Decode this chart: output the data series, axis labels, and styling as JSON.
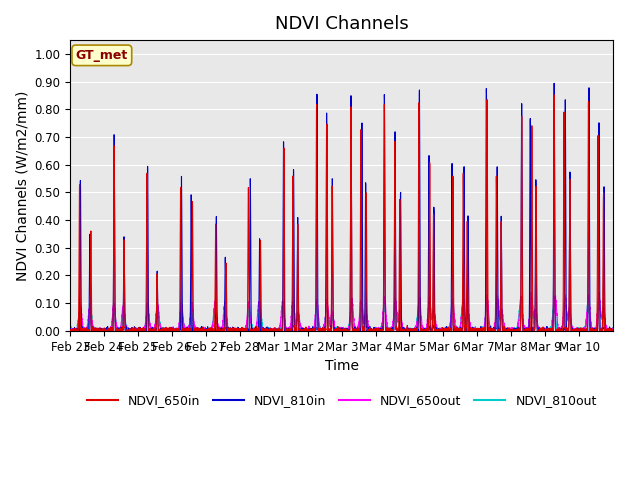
{
  "title": "NDVI Channels",
  "ylabel": "NDVI Channels (W/m2/mm)",
  "xlabel": "Time",
  "annotation": "GT_met",
  "ylim": [
    0.0,
    1.05
  ],
  "bg_color": "#e8e8e8",
  "line_colors": {
    "NDVI_650in": "#dd0000",
    "NDVI_810in": "#0000cc",
    "NDVI_650out": "#ff00ff",
    "NDVI_810out": "#00cccc"
  },
  "xtick_labels": [
    "Feb 23",
    "Feb 24",
    "Feb 25",
    "Feb 26",
    "Feb 27",
    "Feb 28",
    "Mar 1",
    "Mar 2",
    "Mar 3",
    "Mar 4",
    "Mar 5",
    "Mar 6",
    "Mar 7",
    "Mar 8",
    "Mar 9",
    "Mar 10"
  ],
  "num_days": 16,
  "title_fontsize": 13,
  "axis_fontsize": 10,
  "tick_fontsize": 8.5
}
